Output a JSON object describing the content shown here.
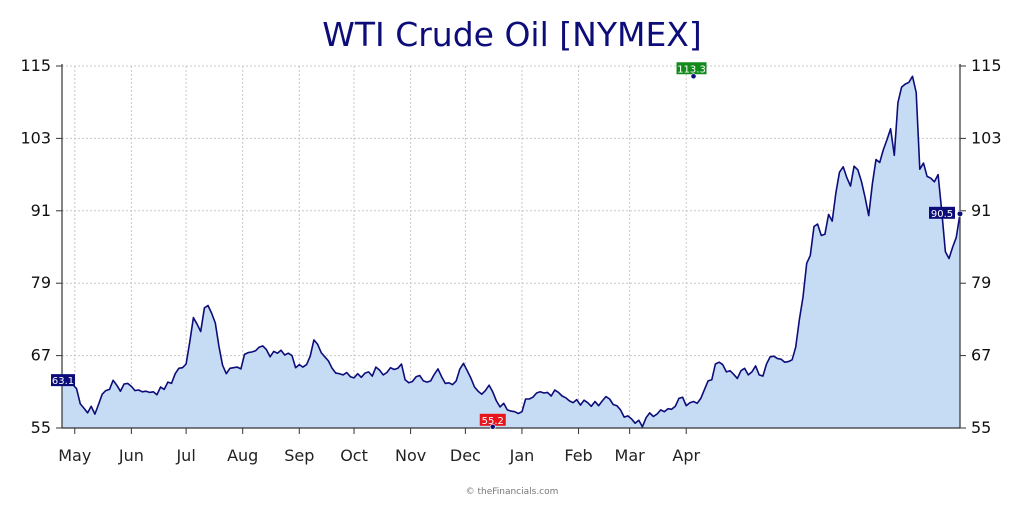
{
  "chart_data": {
    "type": "area",
    "title": "WTI Crude Oil [NYMEX]",
    "xlabel": "",
    "ylabel": "",
    "ylim": [
      55,
      115
    ],
    "y_ticks": [
      "55",
      "67",
      "79",
      "91",
      "103",
      "115"
    ],
    "x_ticks": [
      {
        "label": "May",
        "day": 7
      },
      {
        "label": "Jun",
        "day": 38
      },
      {
        "label": "Jul",
        "day": 68
      },
      {
        "label": "Aug",
        "day": 99
      },
      {
        "label": "Sep",
        "day": 130
      },
      {
        "label": "Oct",
        "day": 160
      },
      {
        "label": "Nov",
        "day": 191
      },
      {
        "label": "Dec",
        "day": 221
      },
      {
        "label": "Jan",
        "day": 252
      },
      {
        "label": "Feb",
        "day": 283
      },
      {
        "label": "Mar",
        "day": 311
      },
      {
        "label": "Apr",
        "day": 342
      }
    ],
    "grid": true,
    "colors": {
      "line": "#0d0d7a",
      "fill": "#c6dcf5",
      "grid": "#c8c8c8",
      "badge_start": "#0d0d7a",
      "badge_low": "#e8141b",
      "badge_high": "#138a1c",
      "badge_last": "#0d0d7a"
    },
    "annotations": {
      "start": {
        "label": "63.1",
        "value": 63.1
      },
      "low": {
        "label": "55.2",
        "value": 55.2,
        "day": 236
      },
      "high": {
        "label": "113.3",
        "value": 113.3,
        "day": 346
      },
      "last": {
        "label": "90.5",
        "value": 90.5
      }
    },
    "series": [
      {
        "values": [
          [
            0,
            63.1
          ],
          [
            2,
            62.7
          ],
          [
            4,
            62.9
          ],
          [
            6,
            62.2
          ],
          [
            8,
            61.5
          ],
          [
            10,
            59.0
          ],
          [
            12,
            58.3
          ],
          [
            14,
            57.5
          ],
          [
            16,
            58.6
          ],
          [
            18,
            57.3
          ],
          [
            20,
            58.9
          ],
          [
            22,
            60.6
          ],
          [
            24,
            61.2
          ],
          [
            26,
            61.4
          ],
          [
            28,
            62.9
          ],
          [
            30,
            62.1
          ],
          [
            32,
            61.1
          ],
          [
            34,
            62.3
          ],
          [
            36,
            62.4
          ],
          [
            38,
            61.9
          ],
          [
            40,
            61.2
          ],
          [
            42,
            61.3
          ],
          [
            44,
            61.0
          ],
          [
            46,
            61.1
          ],
          [
            48,
            60.9
          ],
          [
            50,
            61.0
          ],
          [
            52,
            60.5
          ],
          [
            54,
            61.8
          ],
          [
            56,
            61.4
          ],
          [
            58,
            62.6
          ],
          [
            60,
            62.4
          ],
          [
            62,
            64.0
          ],
          [
            64,
            64.9
          ],
          [
            66,
            65.0
          ],
          [
            68,
            65.6
          ],
          [
            70,
            69.3
          ],
          [
            72,
            73.3
          ],
          [
            74,
            72.2
          ],
          [
            76,
            71.0
          ],
          [
            78,
            74.9
          ],
          [
            80,
            75.3
          ],
          [
            82,
            74.0
          ],
          [
            84,
            72.4
          ],
          [
            86,
            68.5
          ],
          [
            88,
            65.4
          ],
          [
            90,
            64.0
          ],
          [
            92,
            64.9
          ],
          [
            94,
            65.0
          ],
          [
            96,
            65.1
          ],
          [
            98,
            64.8
          ],
          [
            100,
            67.2
          ],
          [
            102,
            67.5
          ],
          [
            104,
            67.6
          ],
          [
            106,
            67.8
          ],
          [
            108,
            68.4
          ],
          [
            110,
            68.6
          ],
          [
            112,
            68.0
          ],
          [
            114,
            66.8
          ],
          [
            116,
            67.7
          ],
          [
            118,
            67.4
          ],
          [
            120,
            67.9
          ],
          [
            122,
            67.1
          ],
          [
            124,
            67.4
          ],
          [
            126,
            67.0
          ],
          [
            128,
            65.0
          ],
          [
            130,
            65.5
          ],
          [
            132,
            65.1
          ],
          [
            134,
            65.5
          ],
          [
            136,
            66.9
          ],
          [
            138,
            69.6
          ],
          [
            140,
            68.9
          ],
          [
            142,
            67.5
          ],
          [
            144,
            66.8
          ],
          [
            146,
            66.1
          ],
          [
            148,
            64.9
          ],
          [
            150,
            64.1
          ],
          [
            152,
            64.0
          ],
          [
            154,
            63.8
          ],
          [
            156,
            64.2
          ],
          [
            158,
            63.5
          ],
          [
            160,
            63.3
          ],
          [
            162,
            64.0
          ],
          [
            164,
            63.4
          ],
          [
            166,
            64.1
          ],
          [
            168,
            64.3
          ],
          [
            170,
            63.6
          ],
          [
            172,
            65.1
          ],
          [
            174,
            64.6
          ],
          [
            176,
            63.8
          ],
          [
            178,
            64.2
          ],
          [
            180,
            65.0
          ],
          [
            182,
            64.7
          ],
          [
            184,
            64.9
          ],
          [
            186,
            65.6
          ],
          [
            188,
            63.0
          ],
          [
            190,
            62.5
          ],
          [
            192,
            62.7
          ],
          [
            194,
            63.5
          ],
          [
            196,
            63.7
          ],
          [
            198,
            62.8
          ],
          [
            200,
            62.6
          ],
          [
            202,
            62.8
          ],
          [
            204,
            63.9
          ],
          [
            206,
            64.8
          ],
          [
            208,
            63.5
          ],
          [
            210,
            62.4
          ],
          [
            212,
            62.5
          ],
          [
            214,
            62.2
          ],
          [
            216,
            62.8
          ],
          [
            218,
            64.8
          ],
          [
            220,
            65.7
          ],
          [
            222,
            64.5
          ],
          [
            224,
            63.3
          ],
          [
            226,
            61.8
          ],
          [
            228,
            61.1
          ],
          [
            230,
            60.6
          ],
          [
            232,
            61.2
          ],
          [
            234,
            62.1
          ],
          [
            236,
            61.0
          ],
          [
            238,
            59.5
          ],
          [
            240,
            58.5
          ],
          [
            242,
            59.1
          ],
          [
            244,
            58.0
          ],
          [
            246,
            57.8
          ],
          [
            248,
            57.7
          ],
          [
            250,
            57.4
          ],
          [
            252,
            57.7
          ],
          [
            254,
            59.8
          ],
          [
            256,
            59.8
          ],
          [
            258,
            60.1
          ],
          [
            260,
            60.8
          ],
          [
            262,
            61.0
          ],
          [
            264,
            60.8
          ],
          [
            266,
            60.9
          ],
          [
            268,
            60.3
          ],
          [
            270,
            61.3
          ],
          [
            272,
            60.9
          ],
          [
            274,
            60.3
          ],
          [
            276,
            60.0
          ],
          [
            278,
            59.5
          ],
          [
            280,
            59.2
          ],
          [
            282,
            59.7
          ],
          [
            284,
            58.8
          ],
          [
            286,
            59.6
          ],
          [
            288,
            59.2
          ],
          [
            290,
            58.6
          ],
          [
            292,
            59.4
          ],
          [
            294,
            58.7
          ],
          [
            296,
            59.5
          ],
          [
            298,
            60.2
          ],
          [
            300,
            59.8
          ],
          [
            302,
            58.9
          ],
          [
            304,
            58.7
          ],
          [
            306,
            58.0
          ],
          [
            308,
            56.8
          ],
          [
            310,
            57.0
          ],
          [
            312,
            56.5
          ],
          [
            314,
            55.8
          ],
          [
            316,
            56.3
          ],
          [
            318,
            55.2
          ],
          [
            320,
            56.7
          ],
          [
            322,
            57.5
          ],
          [
            324,
            56.9
          ],
          [
            326,
            57.3
          ],
          [
            328,
            58.0
          ],
          [
            330,
            57.7
          ],
          [
            332,
            58.2
          ],
          [
            334,
            58.1
          ],
          [
            336,
            58.6
          ],
          [
            338,
            59.9
          ],
          [
            340,
            60.1
          ],
          [
            342,
            58.7
          ],
          [
            344,
            59.2
          ],
          [
            346,
            59.4
          ],
          [
            348,
            59.1
          ],
          [
            350,
            59.9
          ],
          [
            352,
            61.4
          ],
          [
            354,
            62.8
          ],
          [
            356,
            63.0
          ],
          [
            358,
            65.6
          ],
          [
            360,
            65.9
          ],
          [
            362,
            65.5
          ],
          [
            364,
            64.3
          ],
          [
            366,
            64.5
          ],
          [
            368,
            63.9
          ],
          [
            370,
            63.2
          ],
          [
            372,
            64.5
          ],
          [
            374,
            64.9
          ],
          [
            376,
            63.8
          ],
          [
            378,
            64.3
          ],
          [
            380,
            65.3
          ],
          [
            382,
            63.8
          ],
          [
            384,
            63.6
          ],
          [
            386,
            65.6
          ],
          [
            388,
            66.8
          ],
          [
            390,
            66.9
          ],
          [
            392,
            66.5
          ],
          [
            394,
            66.4
          ],
          [
            396,
            65.9
          ],
          [
            398,
            66.0
          ],
          [
            400,
            66.3
          ],
          [
            402,
            68.4
          ],
          [
            404,
            73.0
          ],
          [
            406,
            76.7
          ],
          [
            408,
            82.3
          ],
          [
            410,
            83.6
          ],
          [
            412,
            88.4
          ],
          [
            414,
            88.8
          ],
          [
            416,
            86.9
          ],
          [
            418,
            87.1
          ],
          [
            420,
            90.4
          ],
          [
            422,
            89.3
          ],
          [
            424,
            94.0
          ],
          [
            426,
            97.4
          ],
          [
            428,
            98.3
          ],
          [
            430,
            96.5
          ],
          [
            432,
            95.1
          ],
          [
            434,
            98.4
          ],
          [
            436,
            97.8
          ],
          [
            438,
            95.9
          ],
          [
            440,
            93.2
          ],
          [
            442,
            90.2
          ],
          [
            444,
            95.5
          ],
          [
            446,
            99.5
          ],
          [
            448,
            99.0
          ],
          [
            450,
            101.1
          ],
          [
            452,
            102.8
          ],
          [
            454,
            104.6
          ],
          [
            456,
            100.2
          ],
          [
            458,
            108.9
          ],
          [
            460,
            111.5
          ],
          [
            462,
            112.0
          ],
          [
            464,
            112.3
          ],
          [
            466,
            113.3
          ],
          [
            468,
            110.6
          ],
          [
            470,
            97.9
          ],
          [
            472,
            98.9
          ],
          [
            474,
            96.7
          ],
          [
            476,
            96.4
          ],
          [
            478,
            95.8
          ],
          [
            480,
            97.0
          ],
          [
            482,
            91.0
          ],
          [
            484,
            84.2
          ],
          [
            486,
            83.1
          ],
          [
            488,
            85.0
          ],
          [
            490,
            86.6
          ],
          [
            492,
            90.5
          ]
        ]
      }
    ]
  },
  "credit": "© theFinancials.com"
}
